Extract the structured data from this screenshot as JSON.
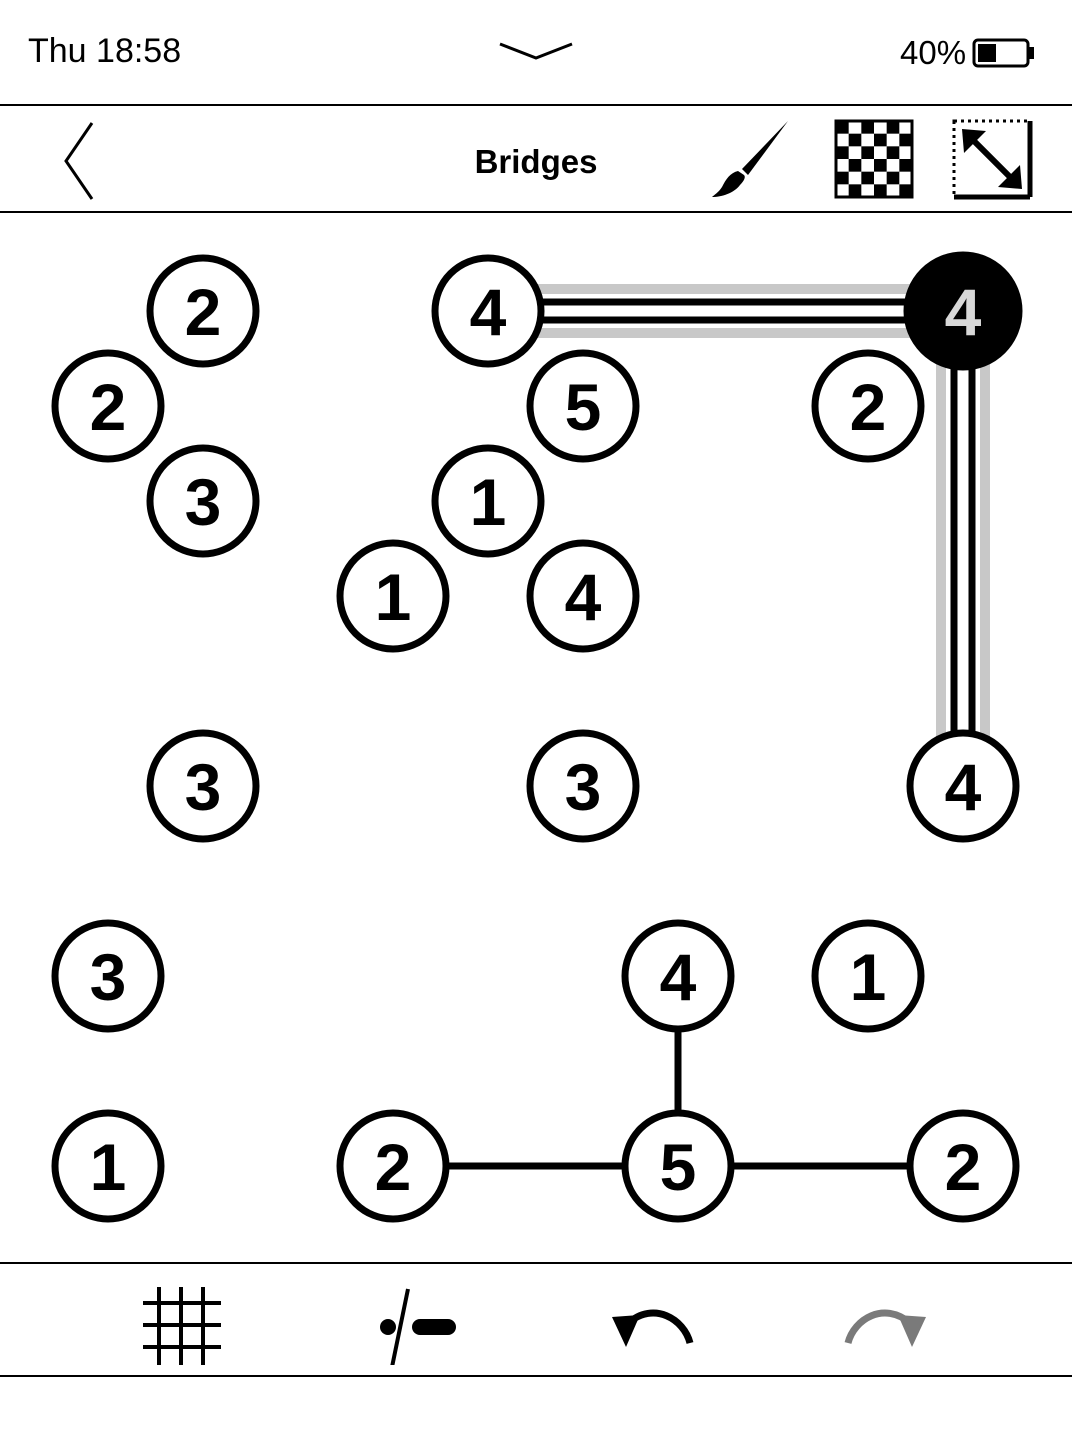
{
  "status": {
    "time": "Thu 18:58",
    "battery": "40%",
    "battery_level": 0.4
  },
  "toolbar": {
    "title": "Bridges",
    "back_icon": "chevron-left-icon",
    "brush_icon": "paintbrush-icon",
    "checker_icon": "checkerboard-icon",
    "resize_icon": "resize-diagonal-icon"
  },
  "board": {
    "grid_cols": 10,
    "grid_rows": 10,
    "islands": [
      {
        "col": 1,
        "row": 0,
        "value": "2",
        "selected": false
      },
      {
        "col": 4,
        "row": 0,
        "value": "4",
        "selected": false
      },
      {
        "col": 9,
        "row": 0,
        "value": "4",
        "selected": true
      },
      {
        "col": 0,
        "row": 1,
        "value": "2",
        "selected": false
      },
      {
        "col": 5,
        "row": 1,
        "value": "5",
        "selected": false
      },
      {
        "col": 8,
        "row": 1,
        "value": "2",
        "selected": false
      },
      {
        "col": 1,
        "row": 2,
        "value": "3",
        "selected": false
      },
      {
        "col": 4,
        "row": 2,
        "value": "1",
        "selected": false
      },
      {
        "col": 3,
        "row": 3,
        "value": "1",
        "selected": false
      },
      {
        "col": 5,
        "row": 3,
        "value": "4",
        "selected": false
      },
      {
        "col": 1,
        "row": 5,
        "value": "3",
        "selected": false
      },
      {
        "col": 5,
        "row": 5,
        "value": "3",
        "selected": false
      },
      {
        "col": 9,
        "row": 5,
        "value": "4",
        "selected": false
      },
      {
        "col": 0,
        "row": 7,
        "value": "3",
        "selected": false
      },
      {
        "col": 6,
        "row": 7,
        "value": "4",
        "selected": false
      },
      {
        "col": 8,
        "row": 7,
        "value": "1",
        "selected": false
      },
      {
        "col": 0,
        "row": 9,
        "value": "1",
        "selected": false
      },
      {
        "col": 3,
        "row": 9,
        "value": "2",
        "selected": false
      },
      {
        "col": 6,
        "row": 9,
        "value": "5",
        "selected": false
      },
      {
        "col": 9,
        "row": 9,
        "value": "2",
        "selected": false
      }
    ],
    "bridges": [
      {
        "from": [
          4,
          0
        ],
        "to": [
          9,
          0
        ],
        "count": 2,
        "highlight": true
      },
      {
        "from": [
          9,
          0
        ],
        "to": [
          9,
          5
        ],
        "count": 2,
        "highlight": true
      },
      {
        "from": [
          6,
          7
        ],
        "to": [
          6,
          9
        ],
        "count": 1,
        "highlight": false
      },
      {
        "from": [
          3,
          9
        ],
        "to": [
          6,
          9
        ],
        "count": 1,
        "highlight": false
      },
      {
        "from": [
          6,
          9
        ],
        "to": [
          9,
          9
        ],
        "count": 1,
        "highlight": false
      }
    ]
  },
  "bottom": {
    "grid_icon": "grid-icon",
    "mark_icon": "dot-slash-dash-icon",
    "undo_icon": "undo-icon",
    "redo_icon": "redo-icon",
    "redo_enabled": false
  }
}
